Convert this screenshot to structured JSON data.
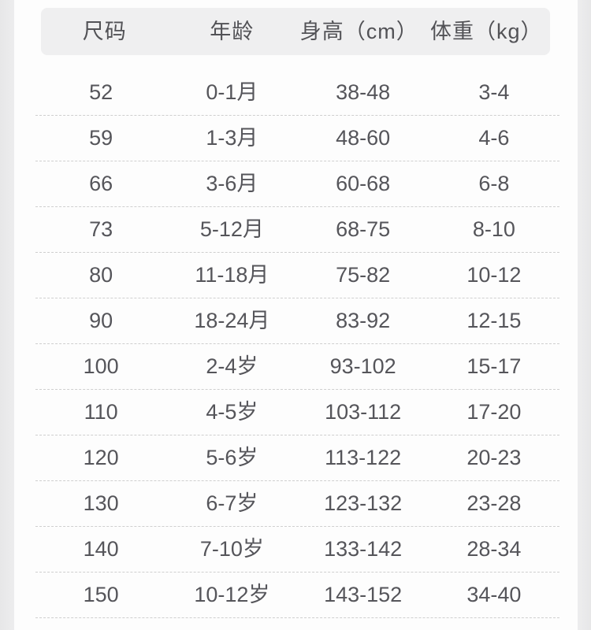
{
  "colors": {
    "page_background": "#e9e9ea",
    "panel_background": "#fdfdfd",
    "header_background": "#efeff0",
    "text": "#55555a",
    "separator_dashed": "#cfcfcf"
  },
  "chart_data": {
    "type": "table",
    "title": "",
    "columns": [
      "尺码",
      "年龄",
      "身高（cm）",
      "体重（kg）"
    ],
    "rows": [
      {
        "size": "52",
        "age": "0-1月",
        "height": "38-48",
        "weight": "3-4"
      },
      {
        "size": "59",
        "age": "1-3月",
        "height": "48-60",
        "weight": "4-6"
      },
      {
        "size": "66",
        "age": "3-6月",
        "height": "60-68",
        "weight": "6-8"
      },
      {
        "size": "73",
        "age": "5-12月",
        "height": "68-75",
        "weight": "8-10"
      },
      {
        "size": "80",
        "age": "11-18月",
        "height": "75-82",
        "weight": "10-12"
      },
      {
        "size": "90",
        "age": "18-24月",
        "height": "83-92",
        "weight": "12-15"
      },
      {
        "size": "100",
        "age": "2-4岁",
        "height": "93-102",
        "weight": "15-17"
      },
      {
        "size": "110",
        "age": "4-5岁",
        "height": "103-112",
        "weight": "17-20"
      },
      {
        "size": "120",
        "age": "5-6岁",
        "height": "113-122",
        "weight": "20-23"
      },
      {
        "size": "130",
        "age": "6-7岁",
        "height": "123-132",
        "weight": "23-28"
      },
      {
        "size": "140",
        "age": "7-10岁",
        "height": "133-142",
        "weight": "28-34"
      },
      {
        "size": "150",
        "age": "10-12岁",
        "height": "143-152",
        "weight": "34-40"
      }
    ]
  }
}
